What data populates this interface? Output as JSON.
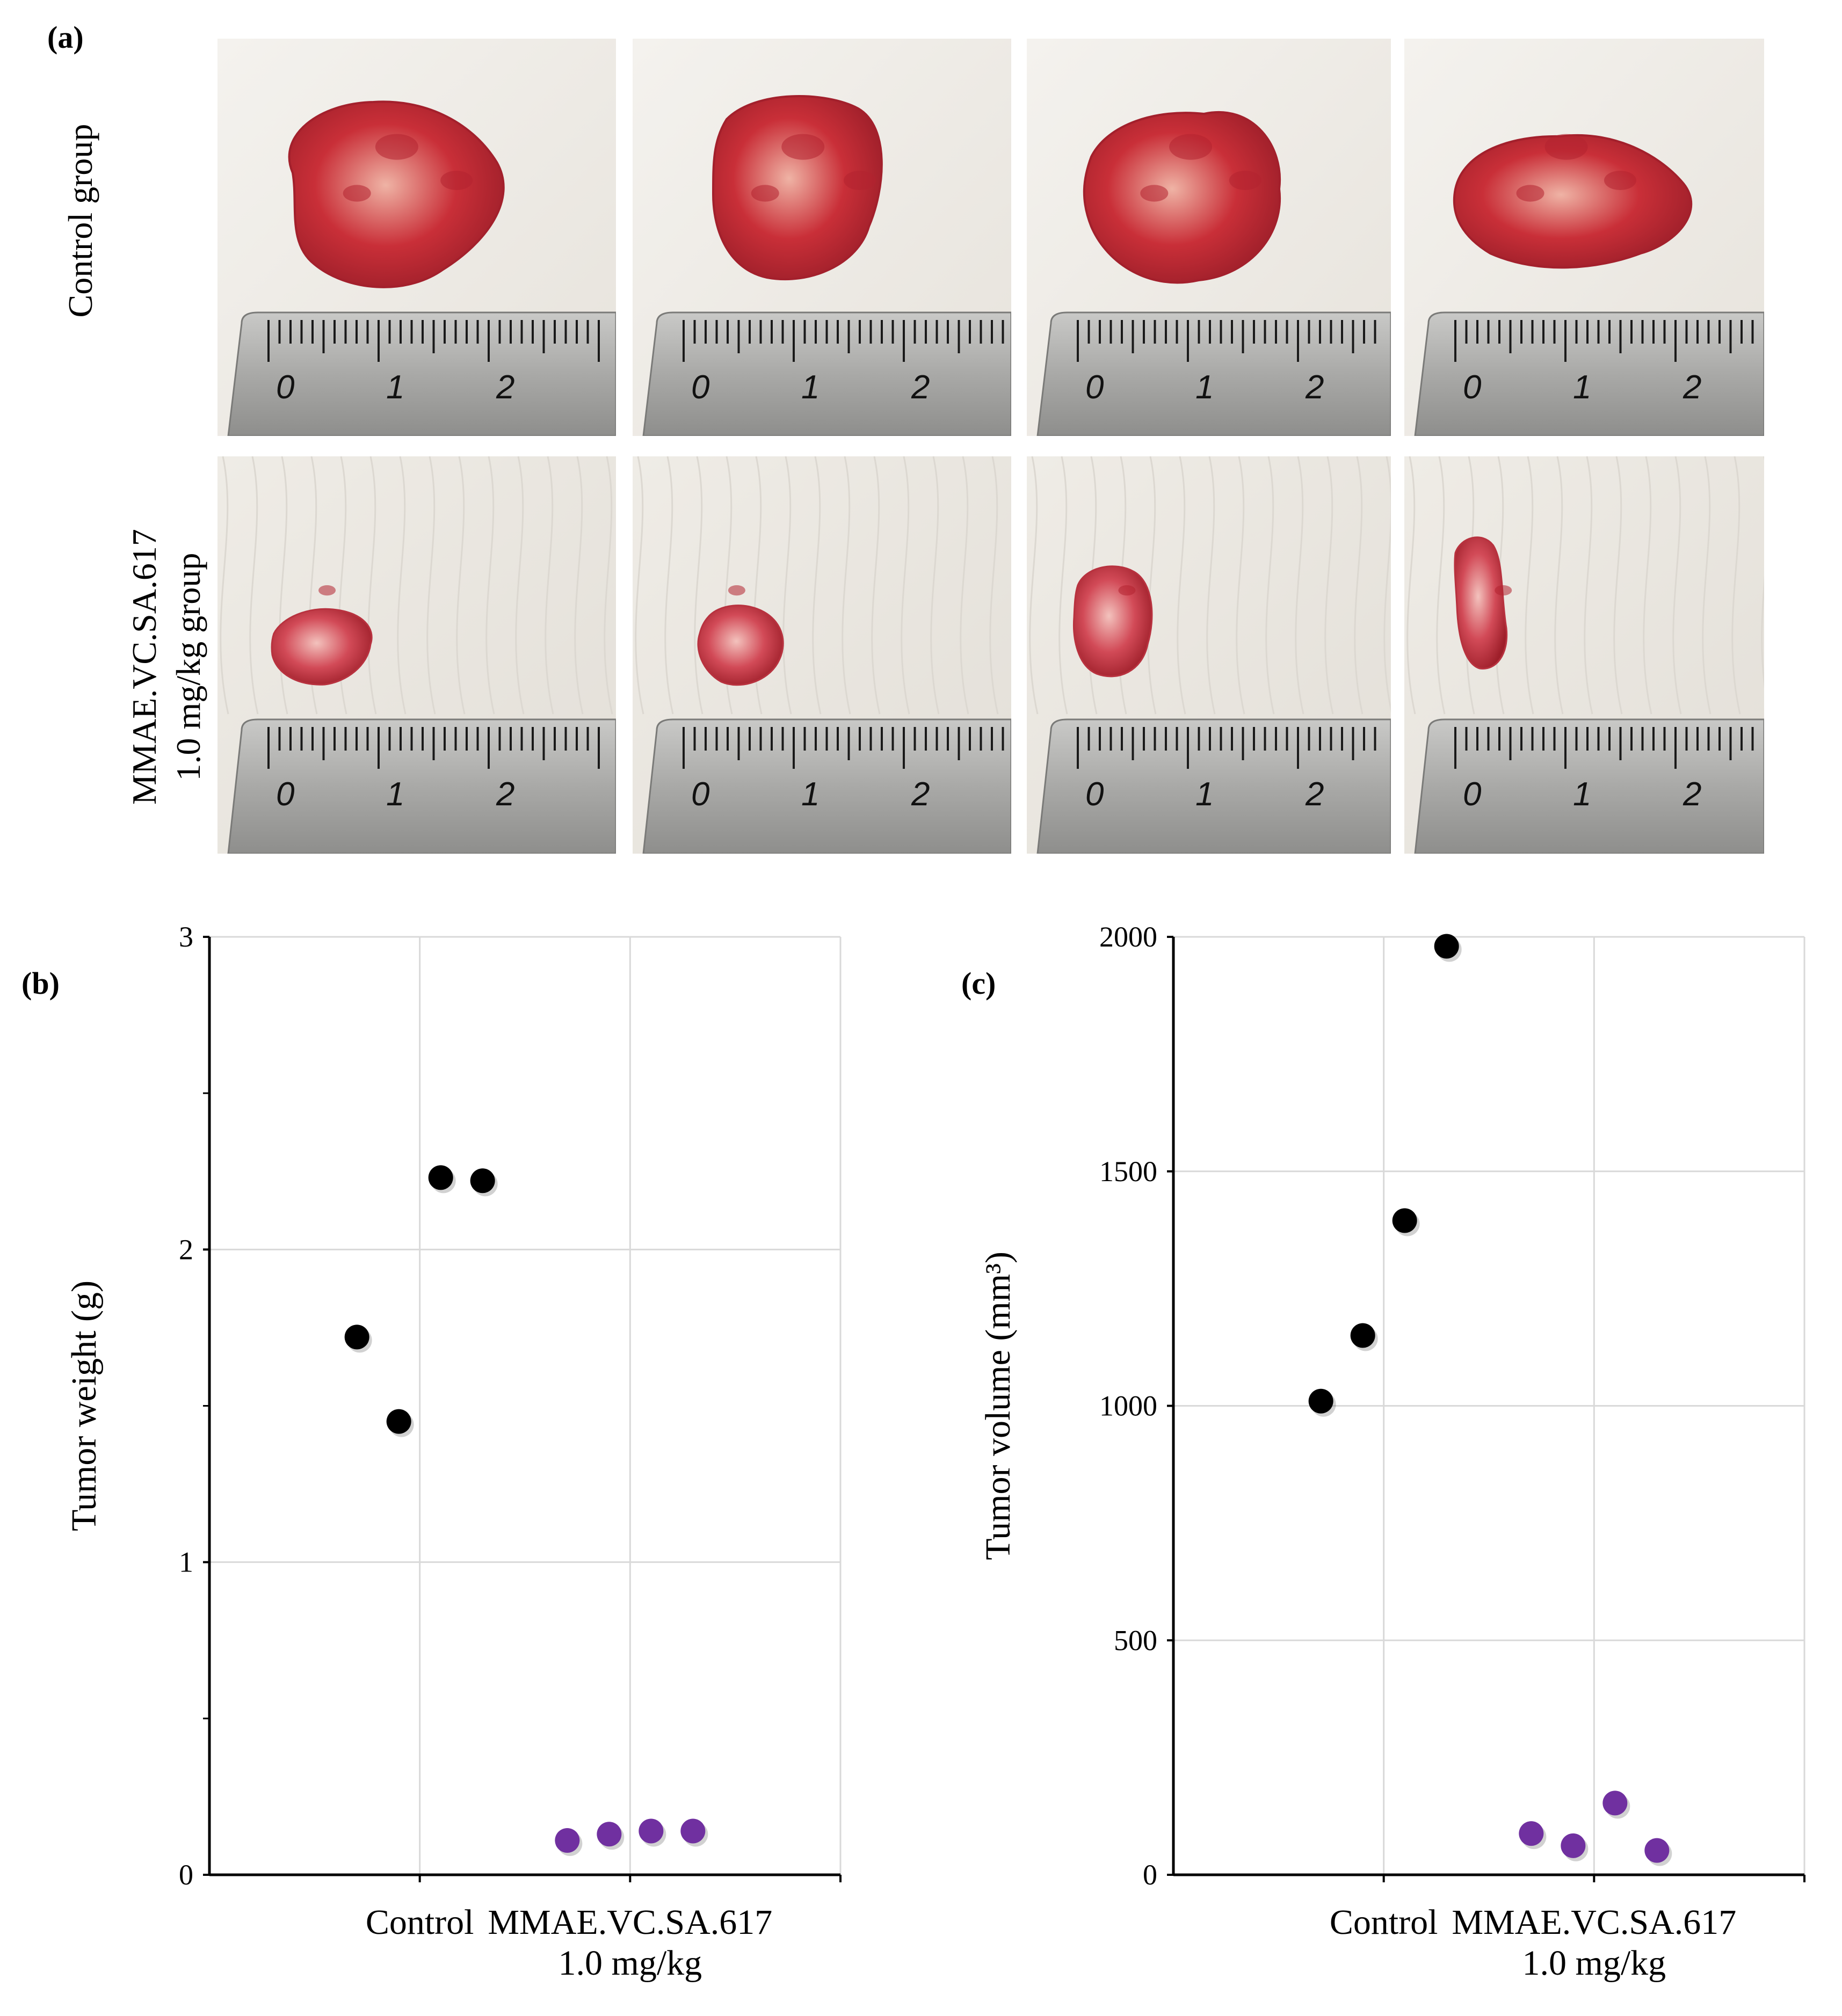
{
  "panel_a": {
    "label": "(a)",
    "rows": [
      {
        "label_lines": [
          "Control group"
        ],
        "tissue": "#c92f38",
        "tissue_light": "#efb3a5",
        "sizes": [
          "large",
          "large",
          "large",
          "large"
        ]
      },
      {
        "label_lines": [
          "MMAE.VC.SA.617",
          "1.0 mg/kg group"
        ],
        "tissue": "#d24a57",
        "tissue_light": "#f3c2bd",
        "sizes": [
          "small",
          "small",
          "small",
          "small"
        ]
      }
    ],
    "ruler_labels": [
      "0",
      "1",
      "2"
    ]
  },
  "chart_data": [
    {
      "panel_label": "(b)",
      "type": "scatter",
      "title": "",
      "xlabel": "",
      "ylabel": "Tumor weight (g)",
      "ylim": [
        0,
        3
      ],
      "yticks": [
        "0",
        "1",
        "2",
        "3"
      ],
      "grid": true,
      "categories": [
        {
          "lines": [
            "Control"
          ]
        },
        {
          "lines": [
            "MMAE.VC.SA.617",
            "1.0 mg/kg"
          ]
        }
      ],
      "series": [
        {
          "name": "Control",
          "color": "#000000",
          "category": 0,
          "values": [
            1.72,
            1.45,
            2.23,
            2.22
          ]
        },
        {
          "name": "MMAE.VC.SA.617 1.0 mg/kg",
          "color": "#7030a0",
          "category": 1,
          "values": [
            0.11,
            0.13,
            0.14,
            0.14
          ]
        }
      ]
    },
    {
      "panel_label": "(c)",
      "type": "scatter",
      "title": "",
      "xlabel": "",
      "ylabel": "Tumor volume (mm³)",
      "ylim": [
        0,
        2000
      ],
      "yticks": [
        "0",
        "500",
        "1000",
        "1500",
        "2000"
      ],
      "grid": true,
      "categories": [
        {
          "lines": [
            "Control"
          ]
        },
        {
          "lines": [
            "MMAE.VC.SA.617",
            "1.0 mg/kg"
          ]
        }
      ],
      "series": [
        {
          "name": "Control",
          "color": "#000000",
          "category": 0,
          "values": [
            1010,
            1150,
            1395,
            1980
          ]
        },
        {
          "name": "MMAE.VC.SA.617 1.0 mg/kg",
          "color": "#7030a0",
          "category": 1,
          "values": [
            88,
            62,
            153,
            52
          ]
        }
      ]
    }
  ]
}
